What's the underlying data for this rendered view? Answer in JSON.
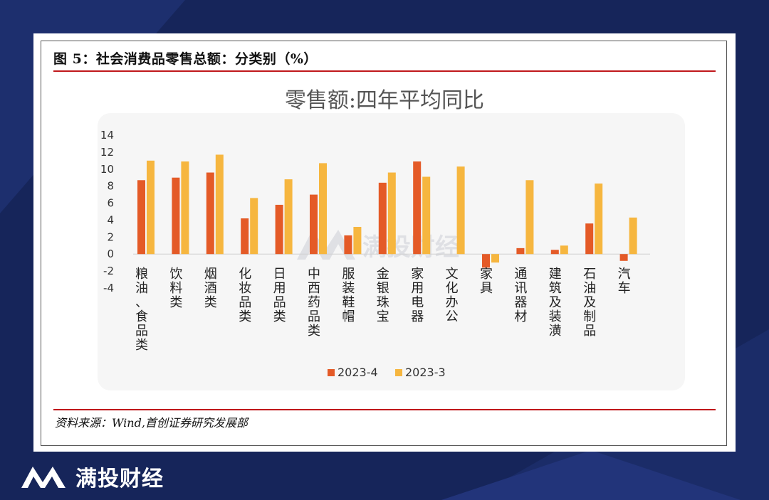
{
  "figure": {
    "title": "图 5：社会消费品零售总额：分类别（%）",
    "source": "资料来源：Wind,首创证券研究发展部"
  },
  "watermark": {
    "text": "满投财经"
  },
  "brand": {
    "name": "满投财经"
  },
  "colors": {
    "series_2023_4": "#e45a27",
    "series_2023_3": "#f6b63f",
    "accent_red": "#c0171b",
    "background": "#16255a"
  },
  "chart_data": {
    "type": "bar",
    "title": "零售额:四年平均同比",
    "xlabel": "",
    "ylabel": "",
    "ylim": [
      -4,
      14
    ],
    "yticks": [
      14,
      12,
      10,
      8,
      6,
      4,
      2,
      0,
      -2,
      -4
    ],
    "yticks_labels": [
      "14",
      "12",
      "10",
      "8",
      "6",
      "4",
      "2",
      "0",
      "-2",
      "-4"
    ],
    "legend_position": "bottom-center",
    "categories": [
      "粮油、食品类",
      "饮料类",
      "烟酒类",
      "化妆品类",
      "日用品类",
      "中西药品类",
      "服装鞋帽",
      "金银珠宝",
      "家用电器",
      "文化办公",
      "家具",
      "通讯器材",
      "建筑及装潢",
      "石油及制品",
      "汽车"
    ],
    "series": [
      {
        "name": "2023-4",
        "values": [
          8.7,
          9.0,
          9.6,
          4.2,
          5.8,
          7.0,
          2.2,
          8.4,
          10.9,
          0.0,
          -1.6,
          0.7,
          0.5,
          3.6,
          -0.8
        ]
      },
      {
        "name": "2023-3",
        "values": [
          11.0,
          10.9,
          11.7,
          6.6,
          8.8,
          10.7,
          3.2,
          9.6,
          9.1,
          10.3,
          -1.0,
          8.7,
          1.0,
          8.3,
          4.3
        ]
      }
    ]
  }
}
